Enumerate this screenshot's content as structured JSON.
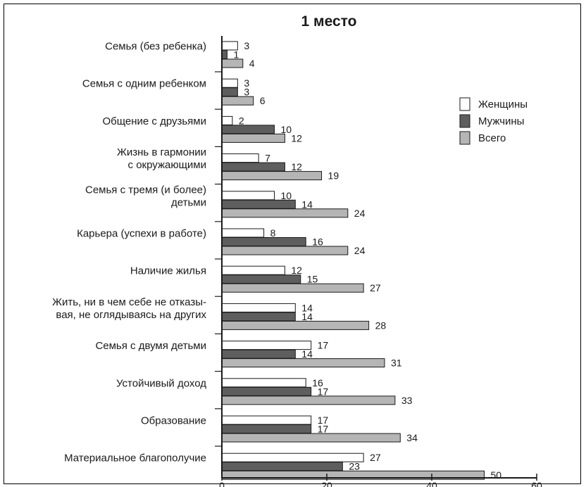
{
  "chart_data": {
    "type": "bar",
    "orientation": "horizontal",
    "title": "1 место",
    "categories": [
      [
        "Семья (без ребенка)"
      ],
      [
        "Семья с одним ребенком"
      ],
      [
        "Общение с друзьями"
      ],
      [
        "Жизнь в гармонии",
        "с окружающими"
      ],
      [
        "Семья с тремя (и более)",
        "детьми"
      ],
      [
        "Карьера (успехи в работе)"
      ],
      [
        "Наличие жилья"
      ],
      [
        "Жить, ни в чем себе не отказы-",
        "вая, не оглядываясь на других"
      ],
      [
        "Семья с двумя детьми"
      ],
      [
        "Устойчивый доход"
      ],
      [
        "Образование"
      ],
      [
        "Материальное благополучие"
      ]
    ],
    "series": [
      {
        "name": "Женщины",
        "color": "#ffffff",
        "values": [
          3,
          3,
          2,
          7,
          10,
          8,
          12,
          14,
          17,
          16,
          17,
          27
        ]
      },
      {
        "name": "Мужчины",
        "color": "#5e5e5e",
        "values": [
          1,
          3,
          10,
          12,
          14,
          16,
          15,
          14,
          14,
          17,
          17,
          23
        ]
      },
      {
        "name": "Всего",
        "color": "#b5b5b5",
        "values": [
          4,
          6,
          12,
          19,
          24,
          24,
          27,
          28,
          31,
          33,
          34,
          50
        ]
      }
    ],
    "xlim": [
      0,
      60
    ],
    "xticks": [
      0,
      20,
      40,
      60
    ],
    "legend_position": "right",
    "grid": false
  }
}
